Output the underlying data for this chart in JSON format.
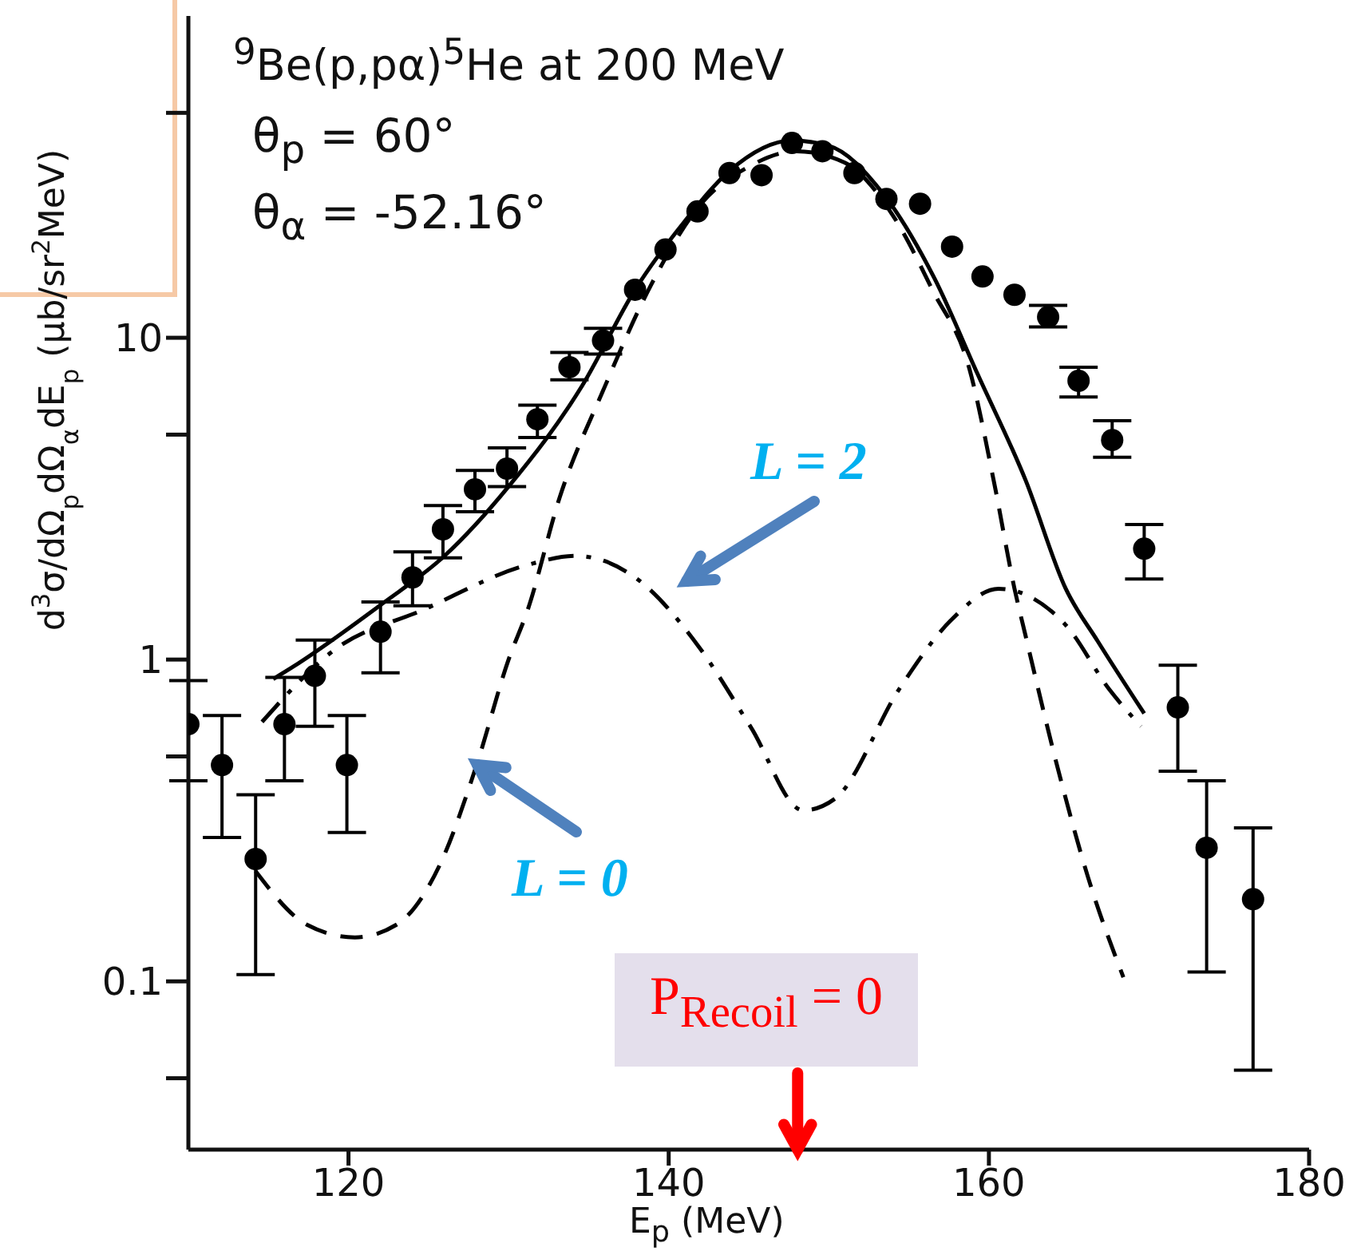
{
  "chart_data": {
    "type": "scatter",
    "xlabel": "E$_{p}$ (MeV)",
    "ylabel": "d$^{3}$σ/dΩ$_{p}$dΩ$_{α}$dE$_{p}$ (μb/sr$^{2}$MeV)",
    "log": "y",
    "xlim": [
      110,
      180
    ],
    "xticks": [
      120,
      140,
      160,
      180
    ],
    "ylim": [
      0.03,
      100
    ],
    "yticks": [
      {
        "value": 0.05,
        "label": null
      },
      {
        "value": 0.1,
        "label": "0.1"
      },
      {
        "value": 0.5,
        "label": null
      },
      {
        "value": 1,
        "label": "1"
      },
      {
        "value": 5,
        "label": null
      },
      {
        "value": 10,
        "label": "10"
      },
      {
        "value": 50,
        "label": null
      }
    ],
    "annotations": [
      "$^{9}$Be(p,pα)$^{5}$He  at  200 MeV",
      "θ$_{p}$ = 60°",
      "θ$_{α}$ = -52.16°",
      "L = 2",
      {
        "text": "L = 0",
        "x": 128,
        "y": 0.47
      },
      "P$_{Recoil}$ = 0"
    ],
    "series": [
      {
        "color": "#000000",
        "marker": "circle",
        "x": [
          110,
          112.1,
          114.2,
          116,
          117.9,
          119.9,
          122,
          124,
          125.9,
          127.9,
          129.9,
          131.8,
          133.8,
          135.9,
          137.9,
          139.8,
          141.8,
          143.8,
          145.8,
          147.7,
          149.6,
          151.6,
          153.6,
          155.7,
          157.7,
          159.6,
          161.6,
          163.7,
          165.6,
          167.7,
          169.7,
          171.8,
          173.6,
          176.5
        ],
        "values": [
          0.63,
          0.47,
          0.24,
          0.63,
          0.89,
          0.47,
          1.22,
          1.8,
          2.54,
          3.38,
          3.92,
          5.58,
          8.1,
          9.8,
          14.1,
          18.8,
          24.7,
          32.5,
          32,
          40.3,
          38,
          32.5,
          27,
          26.1,
          19.2,
          15.5,
          13.6,
          11.6,
          7.35,
          4.81,
          2.21,
          0.71,
          0.26,
          0.18
        ],
        "errors": [
          [
            0.42,
            0.86
          ],
          [
            0.28,
            0.67
          ],
          [
            0.105,
            0.38
          ],
          [
            0.42,
            0.88
          ],
          [
            0.62,
            1.15
          ],
          [
            0.29,
            0.67
          ],
          [
            0.91,
            1.51
          ],
          [
            1.47,
            2.16
          ],
          [
            2.07,
            3.01
          ],
          [
            2.88,
            3.87
          ],
          [
            3.45,
            4.55
          ],
          [
            4.9,
            6.17
          ],
          [
            7.4,
            9.0
          ],
          [
            8.9,
            10.7
          ],
          null,
          null,
          null,
          null,
          null,
          null,
          null,
          null,
          null,
          null,
          null,
          null,
          null,
          [
            10.8,
            12.6
          ],
          [
            6.55,
            8.1
          ],
          [
            4.25,
            5.52
          ],
          [
            1.78,
            2.63
          ],
          [
            0.45,
            0.96
          ],
          [
            0.107,
            0.42
          ],
          [
            0.053,
            0.3
          ]
        ]
      },
      {
        "type": "line",
        "color": "#000000",
        "line_style": "solid",
        "x": [
          115.3,
          116.4,
          122.1,
          126,
          130,
          134.6,
          137.9,
          141,
          143.8,
          147.7,
          150,
          153.4,
          156.6,
          159.3,
          162.3,
          164.8,
          166.8,
          169.7
        ],
        "values": [
          0.87,
          0.94,
          1.49,
          2.1,
          3.45,
          7.1,
          14.1,
          23,
          33,
          41,
          39.5,
          28,
          15.3,
          7.7,
          3.6,
          1.66,
          1.14,
          0.68
        ]
      },
      {
        "type": "line",
        "color": "#000000",
        "line_style": "dashed",
        "x": [
          114.2,
          117.4,
          120.4,
          123,
          125.7,
          128,
          130,
          131.2,
          133.2,
          135.9,
          138.9,
          142,
          145,
          148,
          151,
          154,
          156.5,
          158.8,
          160.3,
          161.6,
          162.3,
          164.3,
          166.2,
          168.4
        ],
        "values": [
          0.22,
          0.15,
          0.137,
          0.15,
          0.23,
          0.47,
          1.0,
          1.43,
          3.2,
          6.85,
          14.6,
          26,
          34,
          38,
          35,
          24,
          14,
          7.95,
          3.6,
          1.66,
          1.18,
          0.46,
          0.21,
          0.103
        ]
      },
      {
        "type": "line",
        "color": "#000000",
        "line_style": "dashdot",
        "x": [
          114.6,
          119.1,
          124.7,
          131.2,
          134.2,
          137.9,
          141.8,
          145.1,
          148.4,
          150.4,
          154.4,
          157.6,
          160.6,
          164.8,
          167.5,
          169.5
        ],
        "values": [
          0.64,
          1.07,
          1.43,
          1.97,
          2.1,
          1.8,
          1.11,
          0.62,
          0.34,
          0.37,
          0.81,
          1.32,
          1.66,
          1.28,
          0.81,
          0.62
        ]
      }
    ]
  }
}
